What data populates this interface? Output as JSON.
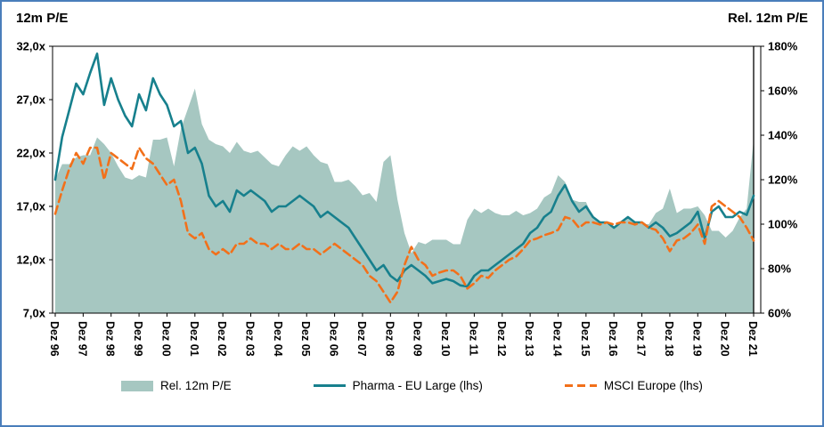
{
  "page": {
    "left_axis_title": "12m P/E",
    "right_axis_title": "Rel. 12m P/E",
    "frame_border_color": "#4a7ebb"
  },
  "chart_data": {
    "type": "line",
    "subtype": "combo-area-two-lines",
    "title": "",
    "xlabel": "",
    "ylabel_left": "12m P/E",
    "ylabel_right": "Rel. 12m P/E",
    "grid": false,
    "legend_position": "bottom",
    "points_per_year": 4,
    "x_start": "Dez 96",
    "x_end": "Dez 21",
    "x_tick_labels": [
      "Dez 96",
      "Dez 97",
      "Dez 98",
      "Dez 99",
      "Dez 00",
      "Dez 01",
      "Dez 02",
      "Dez 03",
      "Dez 04",
      "Dez 05",
      "Dez 06",
      "Dez 07",
      "Dez 08",
      "Dez 09",
      "Dez 10",
      "Dez 11",
      "Dez 12",
      "Dez 13",
      "Dez 14",
      "Dez 15",
      "Dez 16",
      "Dez 17",
      "Dez 18",
      "Dez 19",
      "Dez 20",
      "Dez 21"
    ],
    "left_axis": {
      "min": 7,
      "max": 32,
      "ticks": [
        "32,0x",
        "27,0x",
        "22,0x",
        "17,0x",
        "12,0x",
        "7,0x"
      ]
    },
    "right_axis": {
      "min": 60,
      "max": 180,
      "ticks": [
        "180%",
        "160%",
        "140%",
        "120%",
        "100%",
        "80%",
        "60%"
      ]
    },
    "legend": [
      "Rel. 12m P/E",
      "Pharma - EU Large (lhs)",
      "MSCI Europe (lhs)"
    ],
    "series": [
      {
        "name": "Rel. 12m P/E",
        "type": "area",
        "axis": "right",
        "unit": "%",
        "color": "#a6c7c1",
        "values": [
          120,
          127,
          127,
          130,
          131,
          131,
          139,
          136,
          132,
          126,
          121,
          120,
          122,
          121,
          138,
          138,
          139,
          126,
          143,
          152,
          161,
          145,
          138,
          136,
          135,
          132,
          137,
          133,
          132,
          133,
          130,
          127,
          126,
          131,
          135,
          133,
          135,
          131,
          128,
          127,
          119,
          119,
          120,
          117,
          113,
          114,
          110,
          128,
          131,
          111,
          96,
          87,
          92,
          91,
          93,
          93,
          93,
          91,
          91,
          102,
          107,
          105,
          107,
          105,
          104,
          104,
          106,
          104,
          105,
          107,
          112,
          114,
          122,
          119,
          111,
          110,
          110,
          103,
          101,
          100,
          98,
          100,
          103,
          101,
          100,
          100,
          105,
          107,
          116,
          105,
          107,
          107,
          108,
          104,
          97,
          97,
          94,
          97,
          103,
          107,
          138
        ]
      },
      {
        "name": "Pharma - EU Large (lhs)",
        "type": "line",
        "dash": false,
        "axis": "left",
        "unit": "x",
        "color": "#17808d",
        "values": [
          19.5,
          23.5,
          26,
          28.5,
          27.5,
          29.5,
          31.3,
          26.5,
          29,
          27,
          25.5,
          24.5,
          27.5,
          26,
          29,
          27.5,
          26.5,
          24.5,
          25,
          22,
          22.5,
          21,
          18,
          17,
          17.5,
          16.5,
          18.5,
          18,
          18.5,
          18,
          17.5,
          16.5,
          17,
          17,
          17.5,
          18,
          17.5,
          17,
          16,
          16.5,
          16,
          15.5,
          15,
          14,
          13,
          12,
          11,
          11.5,
          10.5,
          10,
          11,
          11.5,
          11,
          10.5,
          9.8,
          10,
          10.2,
          10,
          9.6,
          9.5,
          10.5,
          11,
          11,
          11.5,
          12,
          12.5,
          13,
          13.5,
          14.5,
          15,
          16,
          16.5,
          18,
          19,
          17.5,
          16.5,
          17,
          16,
          15.5,
          15.5,
          15,
          15.5,
          16,
          15.5,
          15.5,
          15,
          15.5,
          15,
          14.2,
          14.5,
          15,
          15.5,
          16.5,
          14,
          16.5,
          17,
          16,
          16,
          16.5,
          16.2,
          18
        ]
      },
      {
        "name": "MSCI Europe (lhs)",
        "type": "line",
        "dash": true,
        "axis": "left",
        "unit": "x",
        "color": "#f2701a",
        "values": [
          16.3,
          18.5,
          20.5,
          22,
          21,
          22.5,
          22.5,
          19.5,
          22,
          21.5,
          21,
          20.5,
          22.5,
          21.5,
          21,
          20,
          19,
          19.5,
          17.5,
          14.5,
          14,
          14.5,
          13,
          12.5,
          13,
          12.5,
          13.5,
          13.5,
          14,
          13.5,
          13.5,
          13,
          13.5,
          13,
          13,
          13.5,
          13,
          13,
          12.5,
          13,
          13.5,
          13,
          12.5,
          12,
          11.5,
          10.5,
          10,
          9,
          8,
          9,
          11.5,
          13.2,
          12,
          11.5,
          10.5,
          10.8,
          11,
          11,
          10.5,
          9.3,
          9.8,
          10.5,
          10.3,
          11,
          11.5,
          12,
          12.3,
          13,
          13.8,
          14,
          14.3,
          14.5,
          14.8,
          16,
          15.8,
          15,
          15.5,
          15.5,
          15.3,
          15.5,
          15.3,
          15.5,
          15.5,
          15.3,
          15.5,
          15,
          14.8,
          14,
          12.8,
          13.8,
          14,
          14.5,
          15.3,
          13.5,
          17,
          17.5,
          17,
          16.5,
          16,
          15,
          13.8
        ]
      }
    ]
  }
}
